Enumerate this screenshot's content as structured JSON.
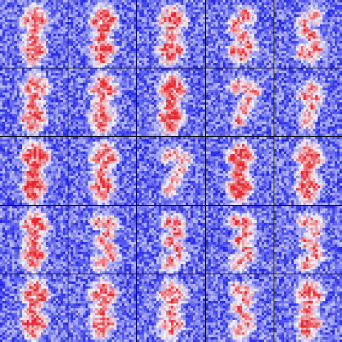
{
  "image": {
    "description_kind": "heatmap-grid",
    "rows": 5,
    "cols": 5,
    "cell_resolution": 28,
    "colormap": {
      "low": "#1a1ee6",
      "mid": "#f4f4fb",
      "high": "#e8242c"
    },
    "border_color": "#000000",
    "tiles": [
      {
        "digit_hint": "8",
        "intensity": 0.55
      },
      {
        "digit_hint": "8",
        "intensity": 0.75
      },
      {
        "digit_hint": "8",
        "intensity": 0.55
      },
      {
        "digit_hint": "5",
        "intensity": 0.5
      },
      {
        "digit_hint": "5",
        "intensity": 0.45
      },
      {
        "digit_hint": "8",
        "intensity": 0.55
      },
      {
        "digit_hint": "8",
        "intensity": 0.6
      },
      {
        "digit_hint": "8",
        "intensity": 0.8
      },
      {
        "digit_hint": "7",
        "intensity": 0.45
      },
      {
        "digit_hint": "9",
        "intensity": 0.35
      },
      {
        "digit_hint": "8",
        "intensity": 0.9
      },
      {
        "digit_hint": "8",
        "intensity": 0.6
      },
      {
        "digit_hint": "7",
        "intensity": 0.35
      },
      {
        "digit_hint": "8",
        "intensity": 0.85
      },
      {
        "digit_hint": "8",
        "intensity": 0.7
      },
      {
        "digit_hint": "8",
        "intensity": 0.7
      },
      {
        "digit_hint": "3",
        "intensity": 0.55
      },
      {
        "digit_hint": "3",
        "intensity": 0.5
      },
      {
        "digit_hint": "3",
        "intensity": 0.55
      },
      {
        "digit_hint": "3",
        "intensity": 0.4
      },
      {
        "digit_hint": "8",
        "intensity": 0.7
      },
      {
        "digit_hint": "8",
        "intensity": 0.6
      },
      {
        "digit_hint": "8",
        "intensity": 0.45
      },
      {
        "digit_hint": "3",
        "intensity": 0.5
      },
      {
        "digit_hint": "8",
        "intensity": 0.65
      }
    ]
  }
}
